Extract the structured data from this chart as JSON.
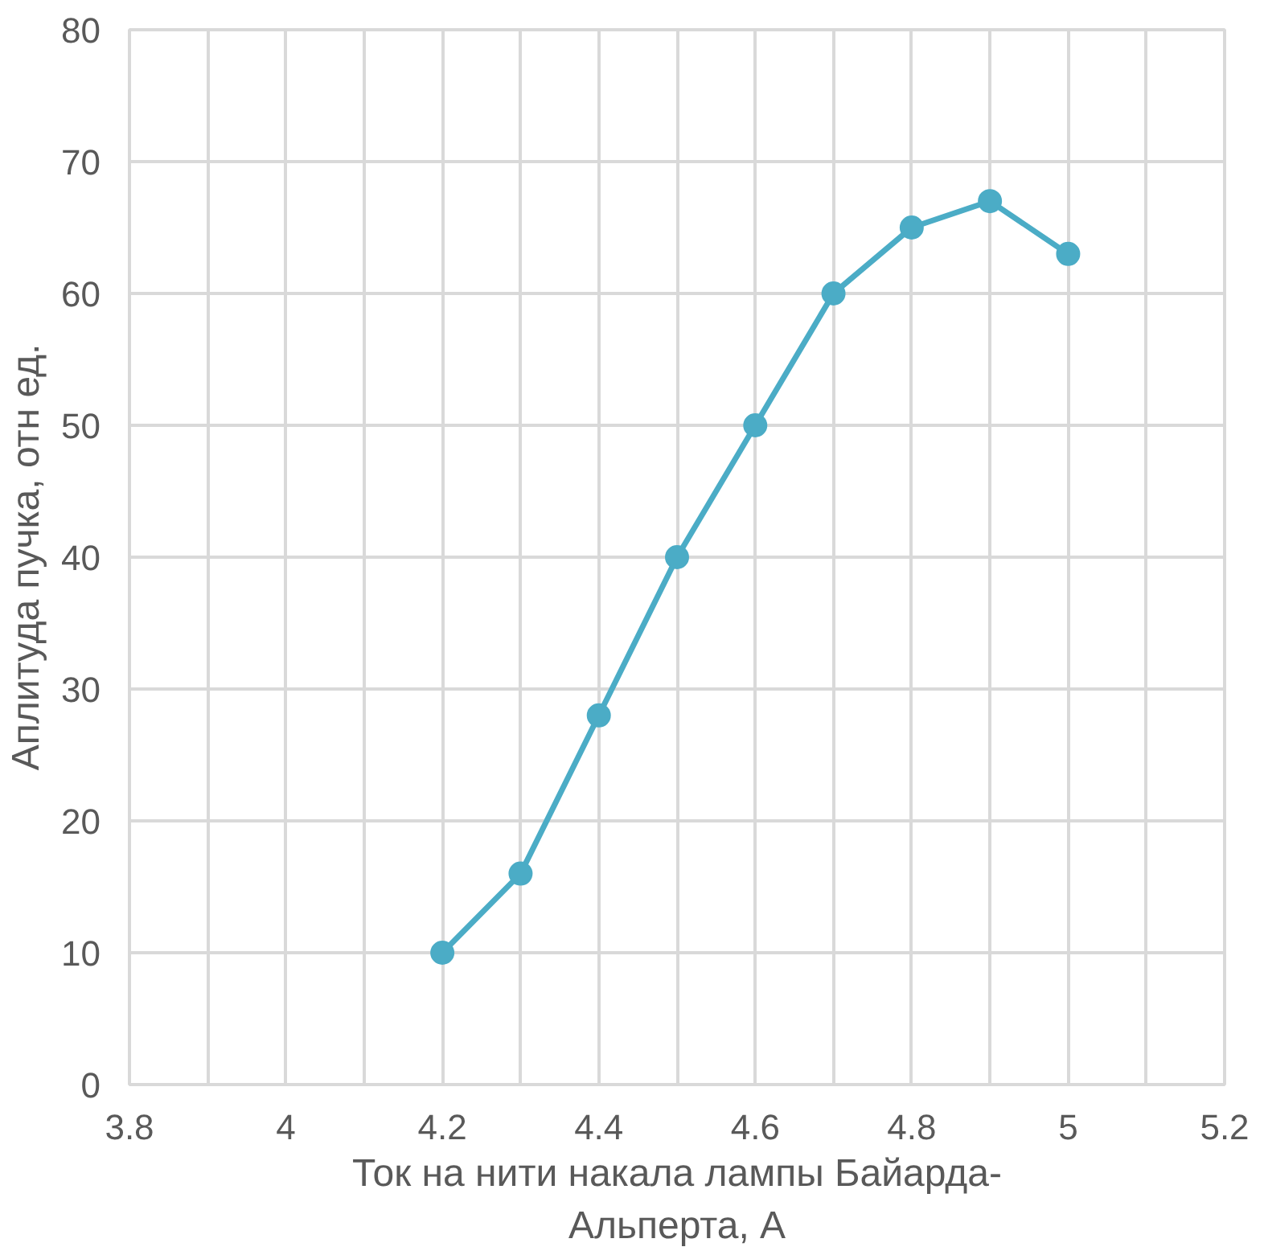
{
  "chart_data": {
    "type": "line",
    "xlabel": "Ток на нити накала лампы Байарда-Альперта, А",
    "ylabel": "Аплитуда пучка, отн ед.",
    "x": [
      4.2,
      4.3,
      4.4,
      4.5,
      4.6,
      4.7,
      4.8,
      4.9,
      5.0
    ],
    "series": [
      {
        "color": "#4bacc6",
        "values": [
          10,
          16,
          28,
          40,
          50,
          60,
          65,
          67,
          63
        ]
      }
    ],
    "xlim": [
      3.8,
      5.2
    ],
    "xticks": [
      3.8,
      {
        "value": 3.9,
        "label": null
      },
      4,
      {
        "value": 4.1,
        "label": null
      },
      4.2,
      {
        "value": 4.3,
        "label": null
      },
      4.4,
      {
        "value": 4.5,
        "label": null
      },
      4.6,
      {
        "value": 4.7,
        "label": null
      },
      4.8,
      {
        "value": 4.9,
        "label": null
      },
      5,
      {
        "value": 5.1,
        "label": null
      },
      5.2
    ],
    "ylim": [
      0,
      80
    ],
    "yticks": [
      0,
      10,
      20,
      30,
      40,
      50,
      60,
      70,
      80
    ],
    "grid": true,
    "marker": "circle",
    "line_style": "solid"
  }
}
